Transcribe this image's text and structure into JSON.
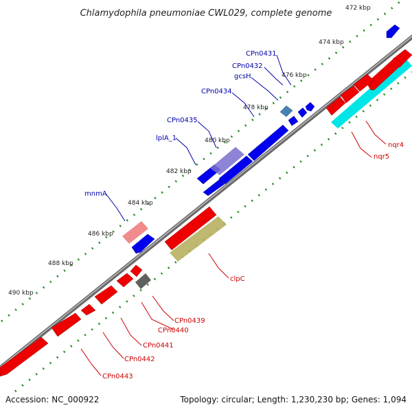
{
  "header": {
    "title": "Chlamydophila pneumoniae CWL029, complete genome"
  },
  "footer": {
    "accession": "Accession: NC_000922",
    "summary": "Topology: circular; Length: 1,230,230 bp; Genes: 1,094"
  },
  "map": {
    "ticks": [
      "472 kbp",
      "474 kbp",
      "476 kbp",
      "478 kbp",
      "480 kbp",
      "482 kbp",
      "484 kbp",
      "486 kbp",
      "488 kbp",
      "490 kbp"
    ],
    "forward_labels": [
      "CPn0431",
      "CPn0432",
      "gcsH",
      "CPn0434",
      "CPn0435",
      "lplA_1",
      "mnmA"
    ],
    "reverse_labels": [
      "nqr4",
      "nqr5",
      "clpC",
      "CPn0439",
      "CPn0440",
      "CPn0441",
      "CPn0442",
      "CPn0443"
    ]
  },
  "colors": {
    "forward_cds": "#0000ee",
    "reverse_cds": "#ee0000",
    "backbone": "#808080",
    "tick_mark": "#228b22",
    "forward_label": "#0000aa",
    "reverse_label": "#cc0000",
    "cyan_feature": "#00e5e5",
    "olive_feature": "#b8b060",
    "pink_feature": "#ee8080",
    "purple_feature": "#7a6fd0",
    "gray_feature": "#606060",
    "steelblue_feature": "#4682b4"
  }
}
